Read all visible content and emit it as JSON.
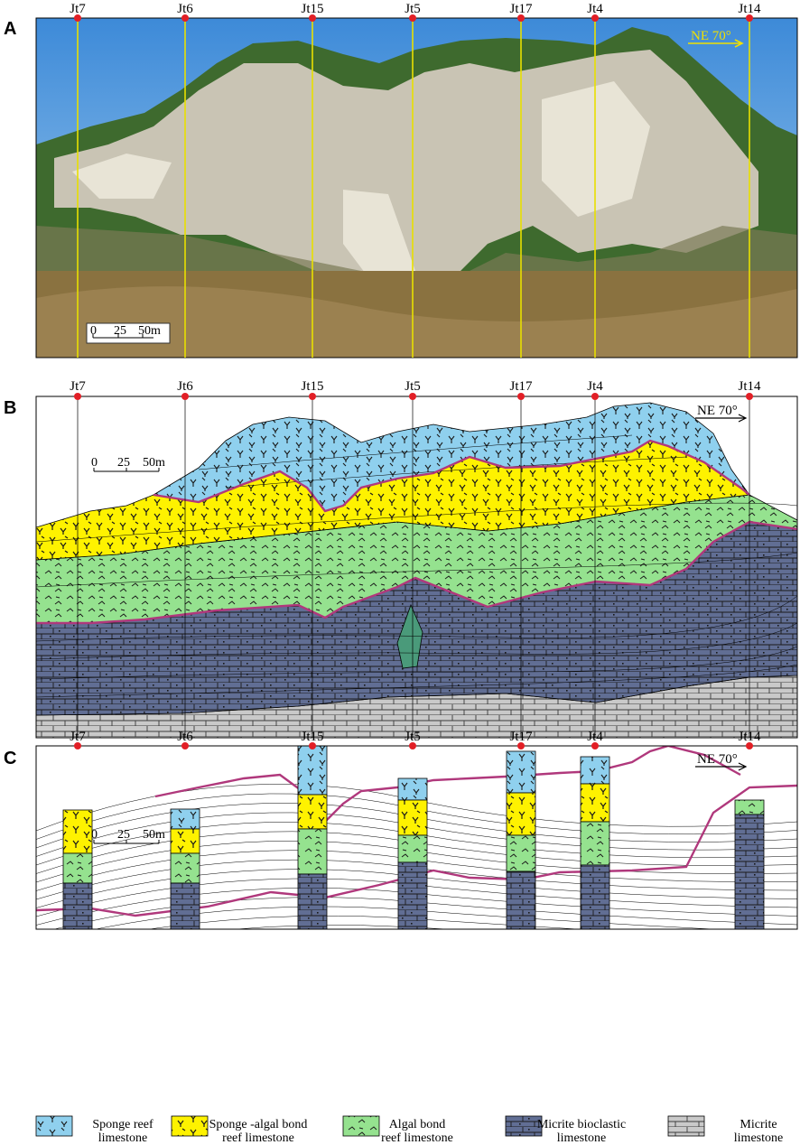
{
  "panels": [
    {
      "letter": "A",
      "kind": "photo"
    },
    {
      "letter": "B",
      "kind": "interpreted-section"
    },
    {
      "letter": "C",
      "kind": "well-columns"
    }
  ],
  "wells": [
    "Jt7",
    "Jt6",
    "Jt15",
    "Jt5",
    "Jt17",
    "Jt4",
    "Jt14"
  ],
  "direction": "NE 70°",
  "scale": {
    "ticks": [
      "0",
      "25",
      "50m"
    ]
  },
  "legend": [
    {
      "name": "sponge-reef",
      "line1": "Sponge reef",
      "line2": "limestone",
      "color": "#8fd0ee",
      "symbol": "Y"
    },
    {
      "name": "sponge-algal",
      "line1": "Sponge -algal bond",
      "line2": "reef limestone",
      "color": "#fef200",
      "symbol": "Y"
    },
    {
      "name": "algal-bond",
      "line1": "Algal bond",
      "line2": "reef limestone",
      "color": "#95e28f",
      "symbol": "algae"
    },
    {
      "name": "micrite-bioclastic",
      "line1": "Micrite bioclastic",
      "line2": "limestone",
      "color": "#616e94",
      "symbol": "brick"
    },
    {
      "name": "micrite",
      "line1": "Micrite",
      "line2": "limestone",
      "color": "#c9c9c9",
      "symbol": "brick"
    }
  ],
  "colors": {
    "boundary": "#b0387c",
    "well": "#e8e000",
    "marker": "#e21f26",
    "blue": "#8fd0ee",
    "yellow": "#fef200",
    "green": "#95e28f",
    "grey": "#616e94",
    "lightgrey": "#c9c9c9"
  }
}
